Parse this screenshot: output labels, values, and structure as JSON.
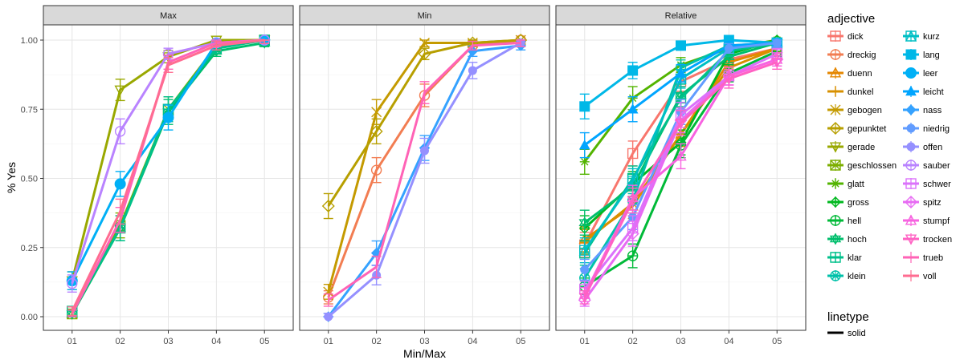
{
  "chart_data": {
    "type": "line",
    "facet_variable": "Min/Max",
    "facets": [
      "Max",
      "Min",
      "Relative"
    ],
    "x_categories": [
      "01",
      "02",
      "03",
      "04",
      "05"
    ],
    "xlabel": "Min/Max",
    "ylabel": "% Yes",
    "ylim": [
      0,
      1
    ],
    "y_ticks": [
      0.0,
      0.25,
      0.5,
      0.75,
      1.0
    ],
    "y_tick_labels": [
      "0.00",
      "0.25",
      "0.50",
      "0.75",
      "1.00"
    ],
    "grid": true,
    "error_bars": true,
    "legend_placement": "right",
    "legend": {
      "title": "adjective",
      "linetype_title": "linetype",
      "linetype_entries": [
        "solid"
      ]
    },
    "series": [
      {
        "name": "dick",
        "color": "#F8766D",
        "shape": "square-open",
        "values": {
          "Max": null,
          "Min": null,
          "Relative": [
            0.26,
            0.59,
            0.85,
            0.93,
            0.97
          ]
        }
      },
      {
        "name": "dreckig",
        "color": "#F27D52",
        "shape": "circle-open",
        "values": {
          "Max": null,
          "Min": [
            0.07,
            0.53,
            0.8,
            0.98,
            1.0
          ],
          "Relative": null
        }
      },
      {
        "name": "duenn",
        "color": "#E58700",
        "shape": "triangle-open",
        "values": {
          "Max": null,
          "Min": null,
          "Relative": [
            0.28,
            0.4,
            0.66,
            0.92,
            0.97
          ]
        }
      },
      {
        "name": "dunkel",
        "color": "#D89000",
        "shape": "plus",
        "values": {
          "Max": null,
          "Min": null,
          "Relative": [
            0.27,
            0.41,
            0.66,
            0.9,
            0.97
          ]
        }
      },
      {
        "name": "gebogen",
        "color": "#C49A00",
        "shape": "cross",
        "values": {
          "Max": null,
          "Min": [
            0.09,
            0.74,
            0.99,
            0.99,
            1.0
          ],
          "Relative": null
        }
      },
      {
        "name": "gepunktet",
        "color": "#B79F00",
        "shape": "diamond-open",
        "values": {
          "Max": null,
          "Min": [
            0.4,
            0.67,
            0.95,
            0.99,
            1.0
          ],
          "Relative": null
        }
      },
      {
        "name": "gerade",
        "color": "#99A800",
        "shape": "triangle-down-open",
        "values": {
          "Max": [
            0.13,
            0.82,
            0.94,
            1.0,
            1.0
          ],
          "Min": null,
          "Relative": null
        }
      },
      {
        "name": "geschlossen",
        "color": "#7CAE00",
        "shape": "square-cross",
        "values": {
          "Max": [
            0.01,
            0.33,
            0.75,
            0.98,
            1.0
          ],
          "Min": null,
          "Relative": null
        }
      },
      {
        "name": "glatt",
        "color": "#53B400",
        "shape": "asterisk",
        "values": {
          "Max": null,
          "Min": null,
          "Relative": [
            0.56,
            0.79,
            0.91,
            0.97,
            1.0
          ]
        }
      },
      {
        "name": "gross",
        "color": "#00B81F",
        "shape": "diamond-plus",
        "values": {
          "Max": null,
          "Min": null,
          "Relative": [
            0.32,
            0.48,
            0.63,
            0.95,
            1.0
          ]
        }
      },
      {
        "name": "hell",
        "color": "#00BA38",
        "shape": "circle-plus",
        "values": {
          "Max": null,
          "Min": null,
          "Relative": [
            0.11,
            0.22,
            0.62,
            0.88,
            0.96
          ]
        }
      },
      {
        "name": "hoch",
        "color": "#00BE6C",
        "shape": "triangle-updown",
        "values": {
          "Max": [
            0.01,
            0.32,
            0.74,
            0.96,
            0.99
          ],
          "Min": null,
          "Relative": [
            0.34,
            0.47,
            0.8,
            0.94,
            0.99
          ]
        }
      },
      {
        "name": "klar",
        "color": "#00C08B",
        "shape": "square-plus",
        "values": {
          "Max": [
            0.02,
            0.32,
            0.75,
            0.97,
            1.0
          ],
          "Min": null,
          "Relative": [
            0.23,
            0.5,
            0.79,
            0.96,
            0.99
          ]
        }
      },
      {
        "name": "klein",
        "color": "#00C1A9",
        "shape": "circle-cross",
        "values": {
          "Max": null,
          "Min": null,
          "Relative": [
            0.14,
            0.42,
            0.9,
            0.98,
            0.99
          ]
        }
      },
      {
        "name": "kurz",
        "color": "#00BFC4",
        "shape": "triangle-square",
        "values": {
          "Max": null,
          "Min": null,
          "Relative": [
            0.24,
            0.49,
            0.86,
            0.97,
            0.99
          ]
        }
      },
      {
        "name": "lang",
        "color": "#00B8E7",
        "shape": "square",
        "values": {
          "Max": null,
          "Min": null,
          "Relative": [
            0.76,
            0.89,
            0.98,
            1.0,
            0.99
          ]
        }
      },
      {
        "name": "leer",
        "color": "#00B0F6",
        "shape": "circle",
        "values": {
          "Max": [
            0.13,
            0.48,
            0.72,
            0.99,
            1.0
          ],
          "Min": null,
          "Relative": null
        }
      },
      {
        "name": "leicht",
        "color": "#00A5FF",
        "shape": "triangle",
        "values": {
          "Max": null,
          "Min": null,
          "Relative": [
            0.62,
            0.75,
            0.88,
            0.98,
            0.99
          ]
        }
      },
      {
        "name": "nass",
        "color": "#35A2FF",
        "shape": "diamond",
        "values": {
          "Max": null,
          "Min": [
            0.0,
            0.23,
            0.61,
            0.96,
            0.98
          ],
          "Relative": null
        }
      },
      {
        "name": "niedrig",
        "color": "#619CFF",
        "shape": "circle-small",
        "values": {
          "Max": null,
          "Min": null,
          "Relative": [
            0.17,
            0.36,
            0.74,
            0.97,
            0.99
          ]
        }
      },
      {
        "name": "offen",
        "color": "#9590FF",
        "shape": "circle-filled",
        "values": {
          "Max": null,
          "Min": [
            0.0,
            0.15,
            0.6,
            0.89,
            0.99
          ],
          "Relative": null
        }
      },
      {
        "name": "sauber",
        "color": "#B983FF",
        "shape": "circle-open",
        "values": {
          "Max": [
            0.12,
            0.67,
            0.95,
            0.99,
            1.0
          ],
          "Min": null,
          "Relative": null
        }
      },
      {
        "name": "schwer",
        "color": "#DB72FB",
        "shape": "square-open",
        "values": {
          "Max": null,
          "Min": null,
          "Relative": [
            0.1,
            0.32,
            0.73,
            0.87,
            0.95
          ]
        }
      },
      {
        "name": "spitz",
        "color": "#E76BF3",
        "shape": "diamond-open",
        "values": {
          "Max": null,
          "Min": null,
          "Relative": [
            0.06,
            0.3,
            0.71,
            0.87,
            0.93
          ]
        }
      },
      {
        "name": "stumpf",
        "color": "#F763E0",
        "shape": "triangle-open",
        "values": {
          "Max": null,
          "Min": null,
          "Relative": [
            0.08,
            0.43,
            0.58,
            0.87,
            0.93
          ]
        }
      },
      {
        "name": "trocken",
        "color": "#FF61C3",
        "shape": "triangle-down-open",
        "values": {
          "Max": null,
          "Min": null,
          "Relative": [
            0.07,
            0.42,
            0.7,
            0.86,
            0.92
          ]
        }
      },
      {
        "name": "trueb",
        "color": "#FF63B6",
        "shape": "line",
        "values": {
          "Max": [
            0.01,
            0.35,
            0.92,
            0.99,
            1.0
          ],
          "Min": [
            0.06,
            0.18,
            0.81,
            0.98,
            0.99
          ],
          "Relative": null
        }
      },
      {
        "name": "voll",
        "color": "#FF6C91",
        "shape": "line",
        "values": {
          "Max": [
            0.02,
            0.38,
            0.91,
            0.98,
            1.0
          ],
          "Min": null,
          "Relative": null
        }
      }
    ]
  }
}
